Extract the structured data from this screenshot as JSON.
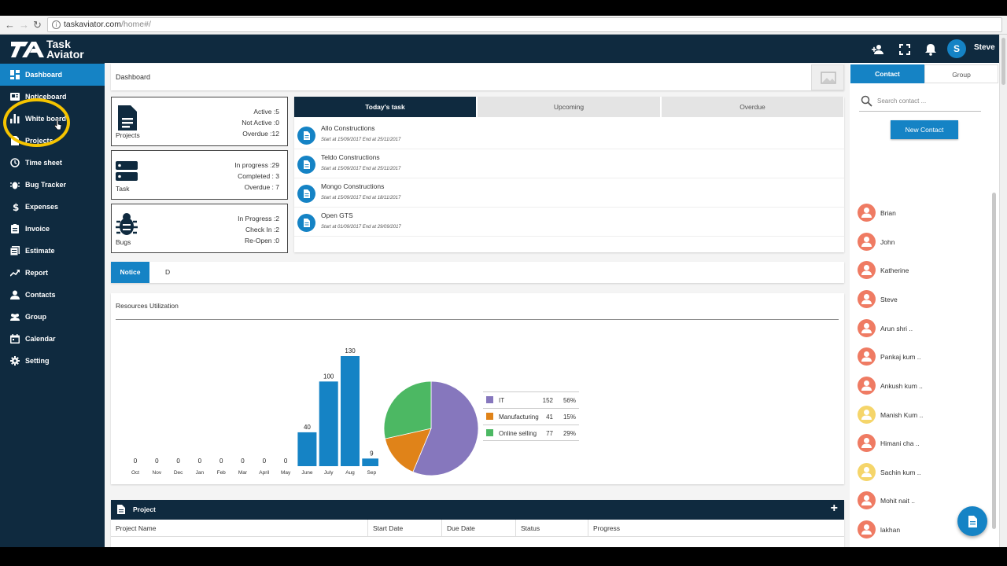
{
  "browser": {
    "url_host": "taskaviator.com",
    "url_path": "/home#/"
  },
  "app": {
    "logo_line1": "Task",
    "logo_line2": "Aviator",
    "user_initial": "S",
    "user_name": "Steve"
  },
  "sidebar": {
    "items": [
      {
        "label": "Dashboard",
        "icon": "dashboard-icon",
        "active": true
      },
      {
        "label": "Noticeboard",
        "icon": "noticeboard-icon"
      },
      {
        "label": "White board",
        "icon": "bar-chart-icon"
      },
      {
        "label": "Projects",
        "icon": "document-icon"
      },
      {
        "label": "Time sheet",
        "icon": "clock-icon"
      },
      {
        "label": "Bug Tracker",
        "icon": "bug-icon"
      },
      {
        "label": "Expenses",
        "icon": "dollar-icon"
      },
      {
        "label": "Invoice",
        "icon": "invoice-icon"
      },
      {
        "label": "Estimate",
        "icon": "estimate-icon"
      },
      {
        "label": "Report",
        "icon": "trend-icon"
      },
      {
        "label": "Contacts",
        "icon": "person-icon"
      },
      {
        "label": "Group",
        "icon": "group-icon"
      },
      {
        "label": "Calendar",
        "icon": "calendar-icon"
      },
      {
        "label": "Setting",
        "icon": "gear-icon"
      }
    ]
  },
  "breadcrumb": "Dashboard",
  "stats": [
    {
      "name": "Projects",
      "lines": [
        "Active :5",
        "Not Active :0",
        "Overdue :12"
      ]
    },
    {
      "name": "Task",
      "lines": [
        "In progress :29",
        "Completed : 3",
        "Overdue : 7"
      ]
    },
    {
      "name": "Bugs",
      "lines": [
        "In Progress :2",
        "Check In :2",
        "Re-Open :0"
      ]
    }
  ],
  "task_tabs": [
    "Today's task",
    "Upcoming",
    "Overdue"
  ],
  "tasks": [
    {
      "name": "Allo Constructions",
      "dates": "Start at 15/09/2017 End at 25/11/2017"
    },
    {
      "name": "Teldo Constructions",
      "dates": "Start at 15/09/2017 End at 25/11/2017"
    },
    {
      "name": "Mongo Constructions",
      "dates": "Start at 15/09/2017 End at 18/11/2017"
    },
    {
      "name": "Open GTS",
      "dates": "Start at 01/09/2017 End at 29/09/2017"
    }
  ],
  "notice_tabs": [
    "Notice",
    "D"
  ],
  "chart_card_title": "Resources Utilization",
  "chart_data": [
    {
      "type": "bar",
      "categories": [
        "Oct",
        "Nov",
        "Dec",
        "Jan",
        "Feb",
        "Mar",
        "April",
        "May",
        "June",
        "July",
        "Aug",
        "Sep"
      ],
      "values": [
        0,
        0,
        0,
        0,
        0,
        0,
        0,
        0,
        40,
        100,
        130,
        9
      ],
      "ylim": [
        0,
        130
      ],
      "color": "#1583c5",
      "data_labels": true
    },
    {
      "type": "pie",
      "slices": [
        {
          "label": "IT",
          "value": 152,
          "percent": "56%",
          "color": "#8677bd"
        },
        {
          "label": "Manufacturing",
          "value": 41,
          "percent": "15%",
          "color": "#e08319"
        },
        {
          "label": "Online selling",
          "value": 77,
          "percent": "29%",
          "color": "#4cb863"
        }
      ],
      "legend_placement": "right"
    }
  ],
  "project": {
    "title": "Project",
    "columns": [
      "Project Name",
      "Start Date",
      "Due Date",
      "Status",
      "Progress"
    ]
  },
  "right_panel": {
    "tabs": [
      "Contact",
      "Group"
    ],
    "search_placeholder": "Search contact ...",
    "new_contact_label": "New Contact",
    "contacts": [
      {
        "name": "Brian",
        "color": "#ef7b63"
      },
      {
        "name": "John",
        "color": "#ef7b63"
      },
      {
        "name": "Katherine",
        "color": "#ef7b63"
      },
      {
        "name": "Steve",
        "color": "#ef7b63"
      },
      {
        "name": "Arun shri  ..",
        "color": "#ef7b63"
      },
      {
        "name": "Pankaj kum  ..",
        "color": "#ef7b63"
      },
      {
        "name": "Ankush kum  ..",
        "color": "#ef7b63"
      },
      {
        "name": "Manish Kum  ..",
        "color": "#f5d56a"
      },
      {
        "name": "Himani cha  ..",
        "color": "#ef7b63"
      },
      {
        "name": "Sachin kum  ..",
        "color": "#f5d56a"
      },
      {
        "name": "Mohit nait  ..",
        "color": "#ef7b63"
      },
      {
        "name": "lakhan",
        "color": "#ef7b63"
      }
    ]
  },
  "colors": {
    "navy": "#0f2a3f",
    "accent": "#1583c5",
    "highlight_ring": "#f5c400"
  }
}
